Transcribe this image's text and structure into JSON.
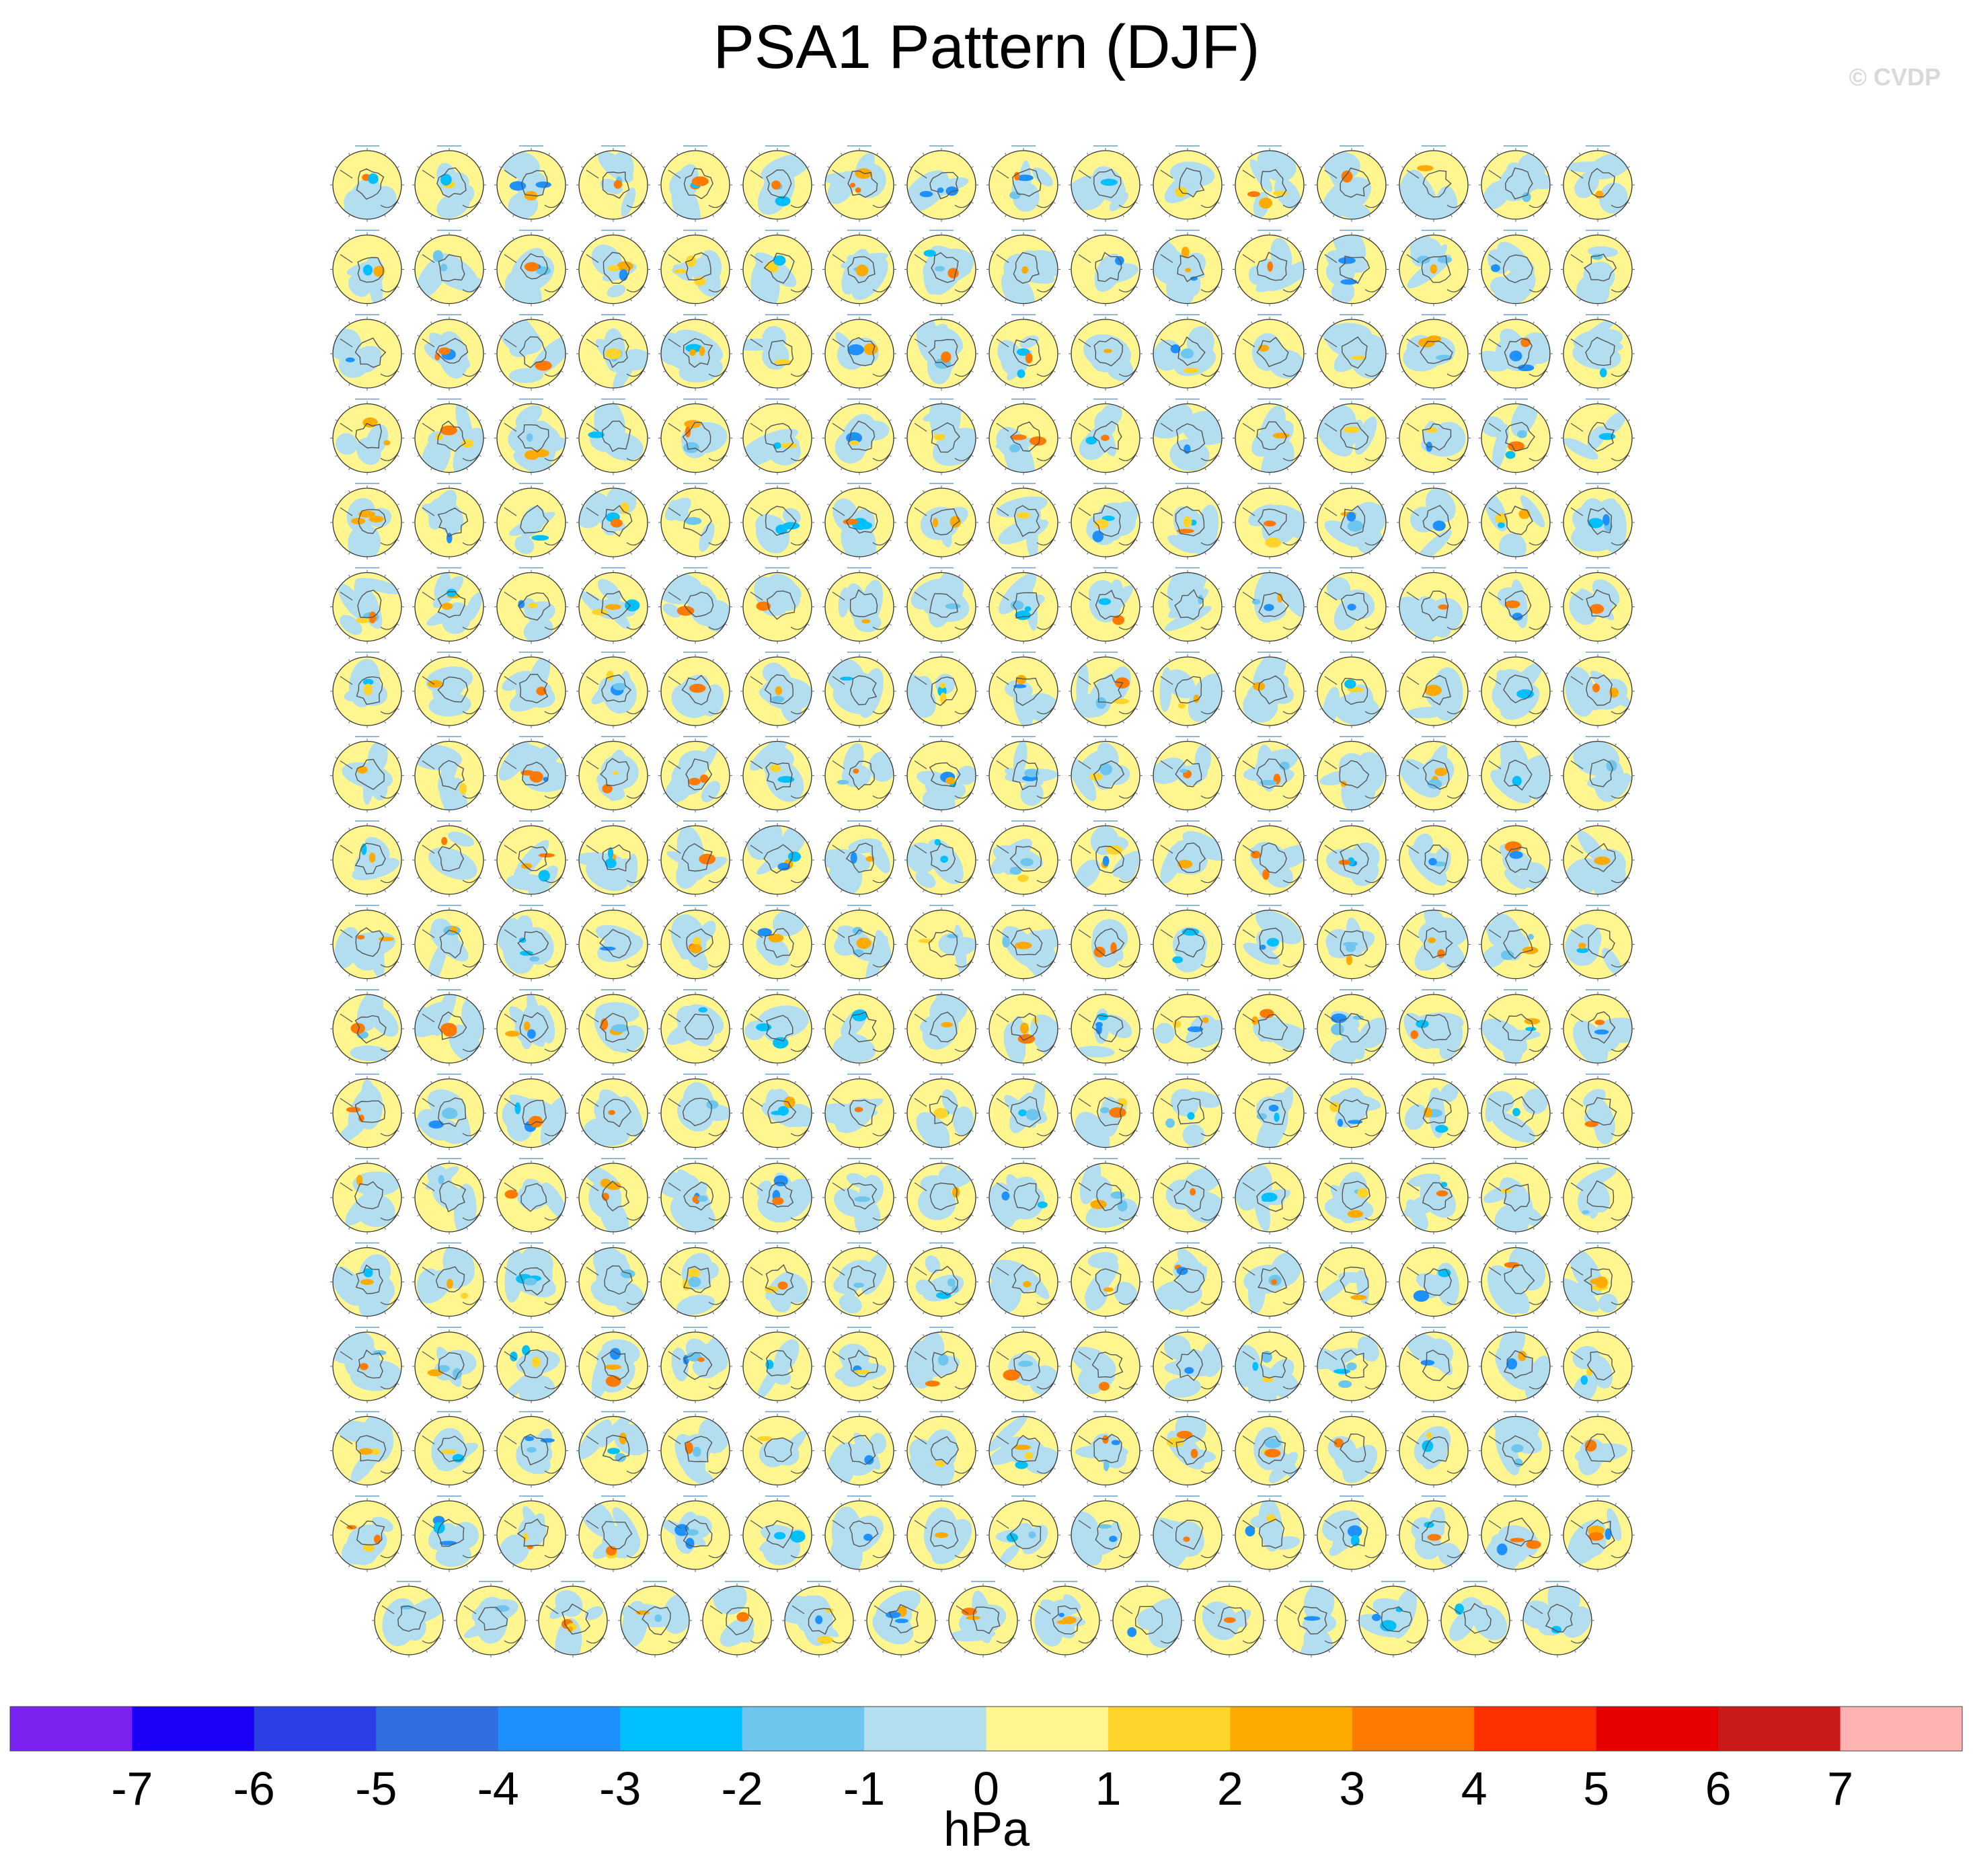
{
  "figure": {
    "title": "PSA1 Pattern (DJF)",
    "watermark": "© CVDP"
  },
  "chart_data": {
    "type": "heatmap",
    "title": "PSA1 Pattern (DJF)",
    "projection": "south-polar-stereographic",
    "grid": {
      "full_rows": 17,
      "columns": 16,
      "last_row_panels": 15
    },
    "panel_count": 287,
    "colorbar": {
      "orientation": "horizontal",
      "units": "hPa",
      "ticks": [
        -7,
        -6,
        -5,
        -4,
        -3,
        -2,
        -1,
        0,
        1,
        2,
        3,
        4,
        5,
        6,
        7
      ],
      "tick_labels": [
        "-7",
        "-6",
        "-5",
        "-4",
        "-3",
        "-2",
        "-1",
        "0",
        "1",
        "2",
        "3",
        "4",
        "5",
        "6",
        "7"
      ],
      "colors": [
        "#7b22f0",
        "#1a00f5",
        "#2a3fe5",
        "#2f6fe0",
        "#1e90ff",
        "#00bfff",
        "#6ec6ee",
        "#b3def0",
        "#fff68f",
        "#ffd42a",
        "#ffaa00",
        "#ff7a00",
        "#ff3000",
        "#e60000",
        "#c91a1a",
        "#ffb3b3"
      ]
    }
  }
}
